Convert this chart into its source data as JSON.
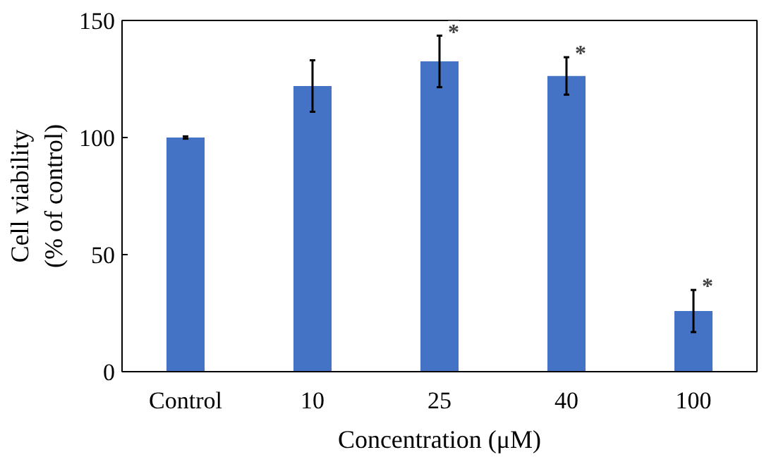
{
  "chart_data": {
    "type": "bar",
    "xlabel": "Concentration (μM)",
    "ylabel": "Cell viability\n(% of control)",
    "categories": [
      "Control",
      "10",
      "25",
      "40",
      "100"
    ],
    "values": [
      100,
      122,
      132.5,
      126.3,
      25.9
    ],
    "errors": [
      0.5,
      11,
      11,
      8,
      9
    ],
    "color": "#4472c4",
    "ylim": [
      0,
      150
    ],
    "yticks": [
      0,
      50,
      100,
      150
    ],
    "grid": false,
    "annotations": [
      {
        "text": "*",
        "x": "25",
        "y": 143.5
      },
      {
        "text": "*",
        "x": "40",
        "y": 134.3
      },
      {
        "text": "*",
        "x": "100",
        "y": 34.9
      }
    ]
  }
}
